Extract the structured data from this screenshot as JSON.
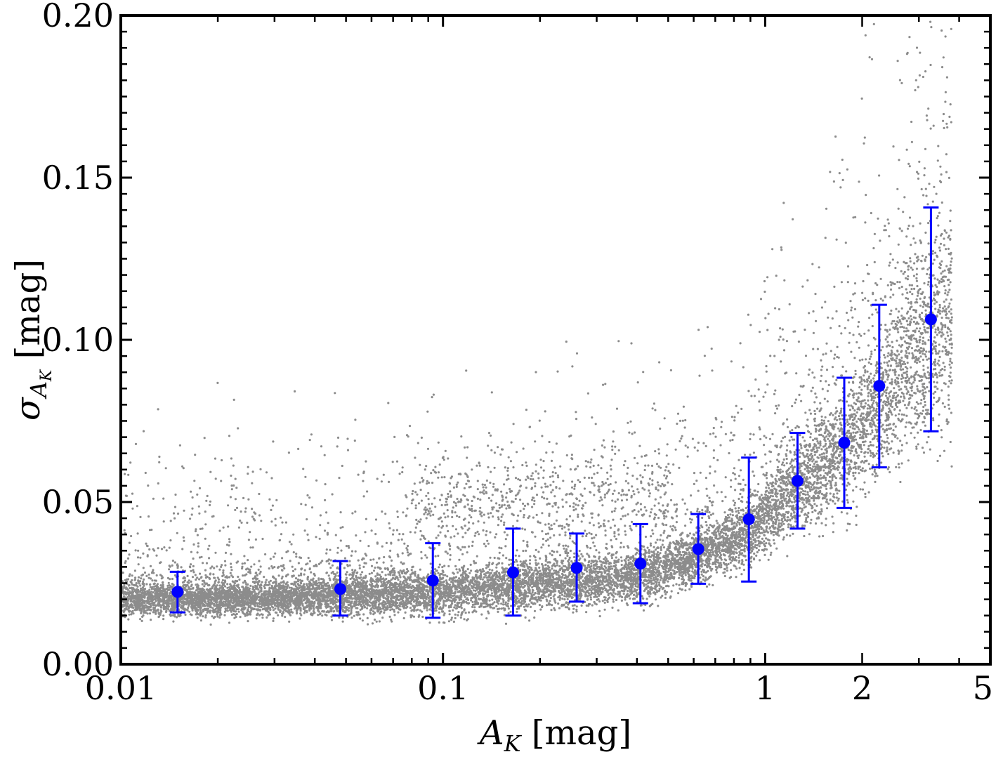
{
  "chart_data": {
    "type": "scatter",
    "xlabel": "A_K [mag]",
    "ylabel": "σ_{A_K} [mag]",
    "xscale": "log",
    "xlim": [
      0.01,
      5
    ],
    "ylim": [
      0.0,
      0.2
    ],
    "grid": false,
    "x_ticks": [
      {
        "value": 0.01,
        "label": "0.01"
      },
      {
        "value": 0.1,
        "label": "0.1"
      },
      {
        "value": 1,
        "label": "1"
      },
      {
        "value": 2,
        "label": "2"
      },
      {
        "value": 5,
        "label": "5"
      }
    ],
    "y_ticks": [
      {
        "value": 0.0,
        "label": "0.00"
      },
      {
        "value": 0.05,
        "label": "0.05"
      },
      {
        "value": 0.1,
        "label": "0.10"
      },
      {
        "value": 0.15,
        "label": "0.15"
      },
      {
        "value": 0.2,
        "label": "0.20"
      }
    ],
    "series": [
      {
        "kind": "scatter-cloud",
        "color": "#000000",
        "opacity": 0.45,
        "density_profile": [
          {
            "x": 0.01,
            "center": 0.02,
            "spread": 0.0025
          },
          {
            "x": 0.03,
            "center": 0.02,
            "spread": 0.0025
          },
          {
            "x": 0.1,
            "center": 0.022,
            "spread": 0.0035
          },
          {
            "x": 0.2,
            "center": 0.025,
            "spread": 0.004
          },
          {
            "x": 0.4,
            "center": 0.027,
            "spread": 0.004
          },
          {
            "x": 0.6,
            "center": 0.032,
            "spread": 0.004
          },
          {
            "x": 0.9,
            "center": 0.041,
            "spread": 0.005
          },
          {
            "x": 1.3,
            "center": 0.055,
            "spread": 0.007
          },
          {
            "x": 1.8,
            "center": 0.066,
            "spread": 0.009
          },
          {
            "x": 2.5,
            "center": 0.085,
            "spread": 0.012
          },
          {
            "x": 3.5,
            "center": 0.105,
            "spread": 0.018
          }
        ],
        "secondary_clump": {
          "x": 0.2,
          "y": 0.05,
          "spread_y": 0.007
        }
      },
      {
        "kind": "errorbar",
        "color": "#0000ff",
        "points": [
          {
            "x": 0.015,
            "y": 0.0223,
            "lo": 0.016,
            "hi": 0.0285
          },
          {
            "x": 0.048,
            "y": 0.0232,
            "lo": 0.015,
            "hi": 0.0318
          },
          {
            "x": 0.093,
            "y": 0.0258,
            "lo": 0.0143,
            "hi": 0.0373
          },
          {
            "x": 0.165,
            "y": 0.0283,
            "lo": 0.015,
            "hi": 0.0418
          },
          {
            "x": 0.26,
            "y": 0.0297,
            "lo": 0.0193,
            "hi": 0.0403
          },
          {
            "x": 0.41,
            "y": 0.031,
            "lo": 0.0188,
            "hi": 0.0432
          },
          {
            "x": 0.62,
            "y": 0.0355,
            "lo": 0.0248,
            "hi": 0.0463
          },
          {
            "x": 0.89,
            "y": 0.0447,
            "lo": 0.0255,
            "hi": 0.0637
          },
          {
            "x": 1.26,
            "y": 0.0565,
            "lo": 0.0418,
            "hi": 0.0713
          },
          {
            "x": 1.76,
            "y": 0.0683,
            "lo": 0.0482,
            "hi": 0.0883
          },
          {
            "x": 2.26,
            "y": 0.0858,
            "lo": 0.0607,
            "hi": 0.1108
          },
          {
            "x": 3.27,
            "y": 0.1063,
            "lo": 0.0718,
            "hi": 0.1408
          }
        ]
      }
    ]
  }
}
